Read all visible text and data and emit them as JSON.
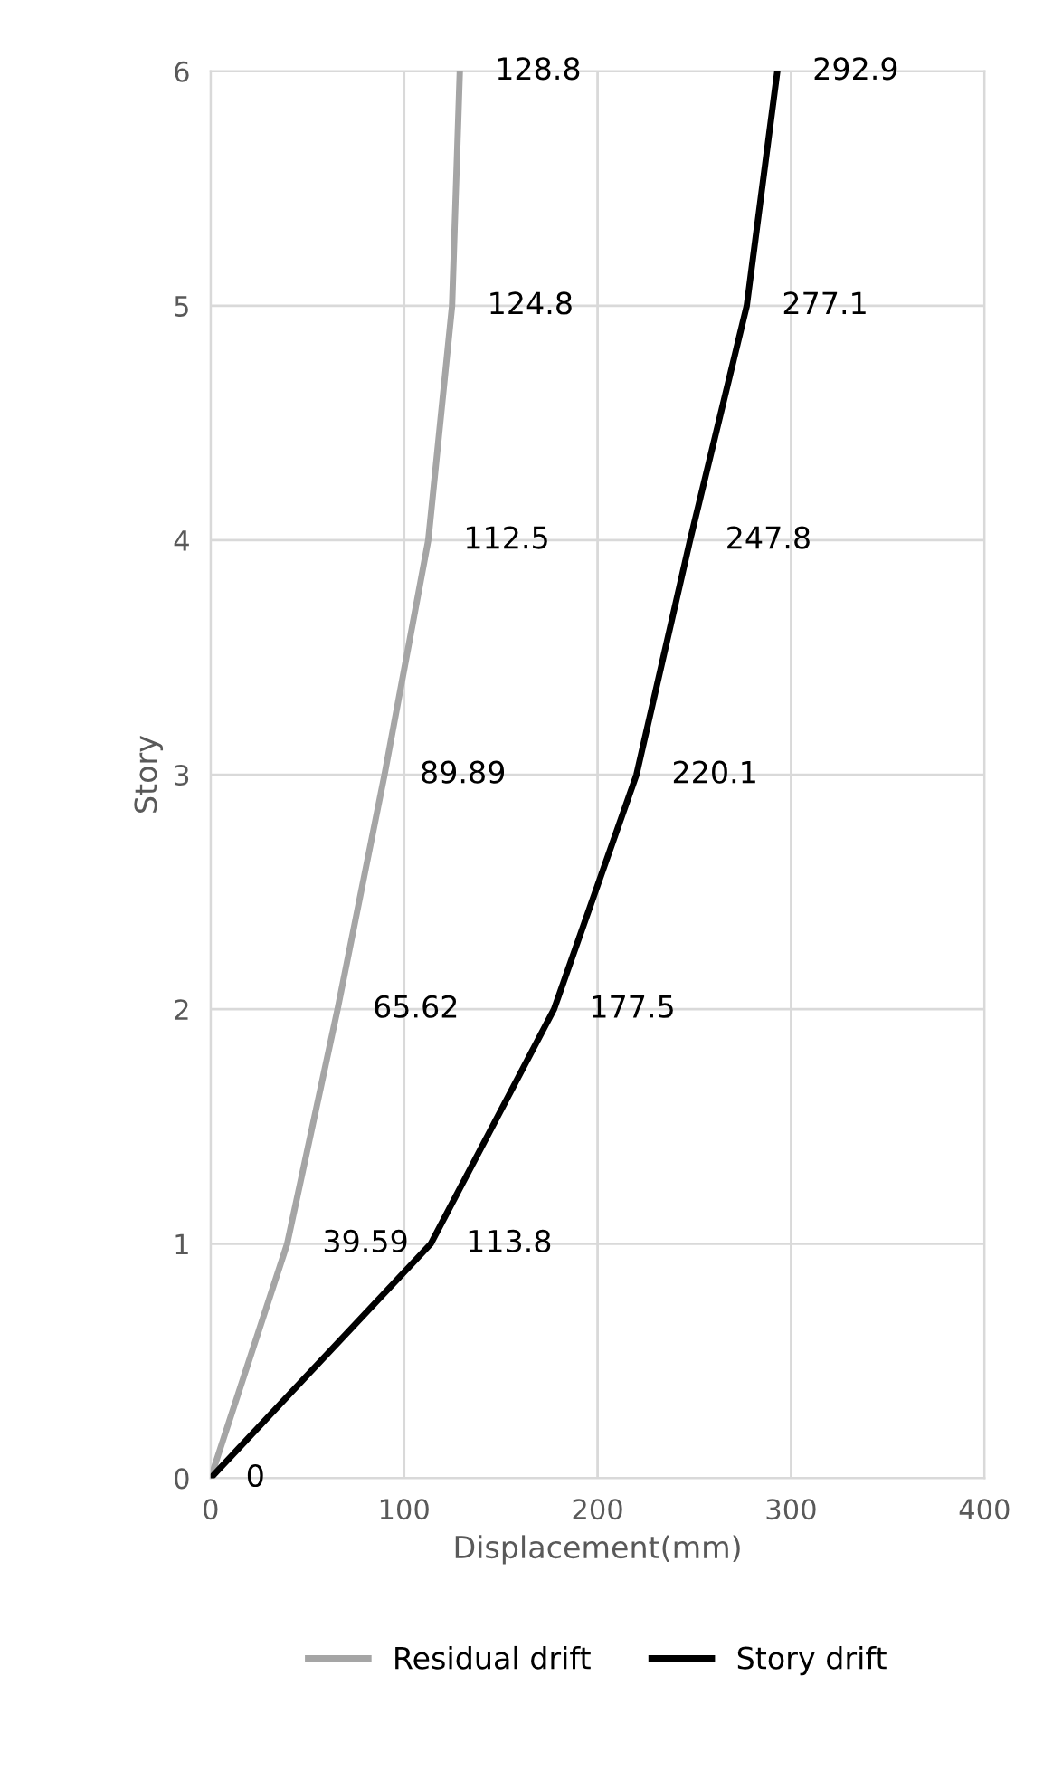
{
  "chart_data": {
    "type": "line",
    "orientation": "horizontal",
    "xlabel": "Displacement(mm)",
    "ylabel": "Story",
    "xlim": [
      0,
      400
    ],
    "xticks": [
      0,
      100,
      200,
      300,
      400
    ],
    "ylim": [
      0,
      6
    ],
    "yticks": [
      0,
      1,
      2,
      3,
      4,
      5,
      6
    ],
    "grid": true,
    "legend": "bottom",
    "marker": "none",
    "line_style": "solid",
    "series": [
      {
        "name": "Residual drift",
        "color": "#a5a5a5",
        "x": [
          0,
          1,
          2,
          3,
          4,
          5,
          6
        ],
        "values": [
          0,
          39.59,
          65.62,
          89.89,
          112.5,
          124.8,
          128.8
        ],
        "value_labels": [
          null,
          "39.59",
          "65.62",
          "89.89",
          "112.5",
          "124.8",
          "128.8"
        ]
      },
      {
        "name": "Story drift",
        "color": "#000000",
        "x": [
          0,
          1,
          2,
          3,
          4,
          5,
          6
        ],
        "values": [
          0,
          113.8,
          177.5,
          220.1,
          247.8,
          277.1,
          292.9
        ],
        "value_labels": [
          "0",
          "113.8",
          "177.5",
          "220.1",
          "247.8",
          "277.1",
          "292.9"
        ]
      }
    ]
  }
}
